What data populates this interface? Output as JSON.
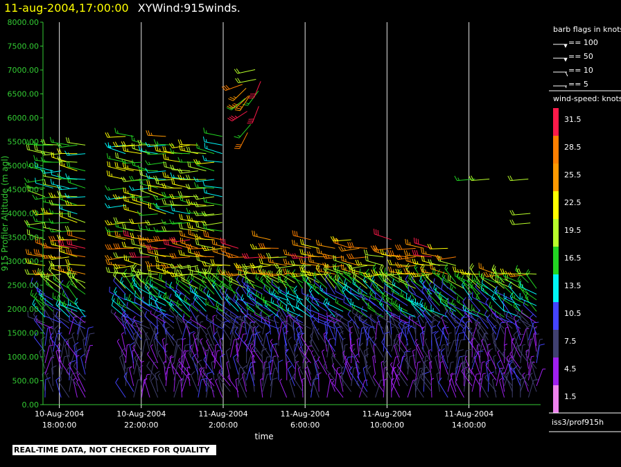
{
  "header": {
    "timestamp": "11-aug-2004,17:00:00",
    "title": "XYWind:915winds."
  },
  "chart_data": {
    "type": "wind-barb",
    "ylabel": "915 Profiler Altitude (m agl)",
    "xlabel": "time",
    "ylim": [
      0,
      8000
    ],
    "yticks": [
      "0.00",
      "500.00",
      "1000.00",
      "1500.00",
      "2000.00",
      "2500.00",
      "3000.00",
      "3500.00",
      "4000.00",
      "4500.00",
      "5000.00",
      "5500.00",
      "6000.00",
      "6500.00",
      "7000.00",
      "7500.00",
      "8000.00"
    ],
    "xlim_hours": [
      -0.8,
      23.5
    ],
    "x_ticks": [
      {
        "hour": 0,
        "date": "10-Aug-2004",
        "time": "18:00:00"
      },
      {
        "hour": 4,
        "date": "10-Aug-2004",
        "time": "22:00:00"
      },
      {
        "hour": 8,
        "date": "11-Aug-2004",
        "time": "2:00:00"
      },
      {
        "hour": 12,
        "date": "11-Aug-2004",
        "time": "6:00:00"
      },
      {
        "hour": 16,
        "date": "11-Aug-2004",
        "time": "10:00:00"
      },
      {
        "hour": 20,
        "date": "11-Aug-2004",
        "time": "14:00:00"
      }
    ],
    "grid_vertical": true,
    "speed_colors": [
      {
        "speed": "31.5",
        "color": "#ff1a4a"
      },
      {
        "speed": "28.5",
        "color": "#ff7f00"
      },
      {
        "speed": "25.5",
        "color": "#ff9900"
      },
      {
        "speed": "22.5",
        "color": "#ffff00"
      },
      {
        "speed": "19.5",
        "color": "#b8ff2a"
      },
      {
        "speed": "16.5",
        "color": "#22d422"
      },
      {
        "speed": "13.5",
        "color": "#00f5f5"
      },
      {
        "speed": "10.5",
        "color": "#4444ff"
      },
      {
        "speed": "7.5",
        "color": "#404070"
      },
      {
        "speed": "4.5",
        "color": "#a020f0"
      },
      {
        "speed": "1.5",
        "color": "#ee82ee"
      }
    ],
    "barb_stats": {
      "columns_approx": 62,
      "gap_hours": [
        [
          1.5,
          3.0
        ]
      ],
      "upper_cloud": {
        "hours": [
          8.8,
          10.2
        ],
        "alt_range": [
          5500,
          7100
        ]
      }
    }
  },
  "legend": {
    "flags_title": "barb flags in knots",
    "flags": [
      {
        "label": "== 100",
        "kind": "pennant"
      },
      {
        "label": "== 50",
        "kind": "pennant"
      },
      {
        "label": "== 10",
        "kind": "full"
      },
      {
        "label": "== 5",
        "kind": "half"
      }
    ],
    "speed_title": "wind-speed: knots",
    "source": "iss3/prof915h"
  },
  "disclaimer": "REAL-TIME DATA, NOT CHECKED FOR QUALITY",
  "colors": {
    "axis": "#33cc33",
    "grid": "#e8e8e8",
    "background": "#000000"
  }
}
